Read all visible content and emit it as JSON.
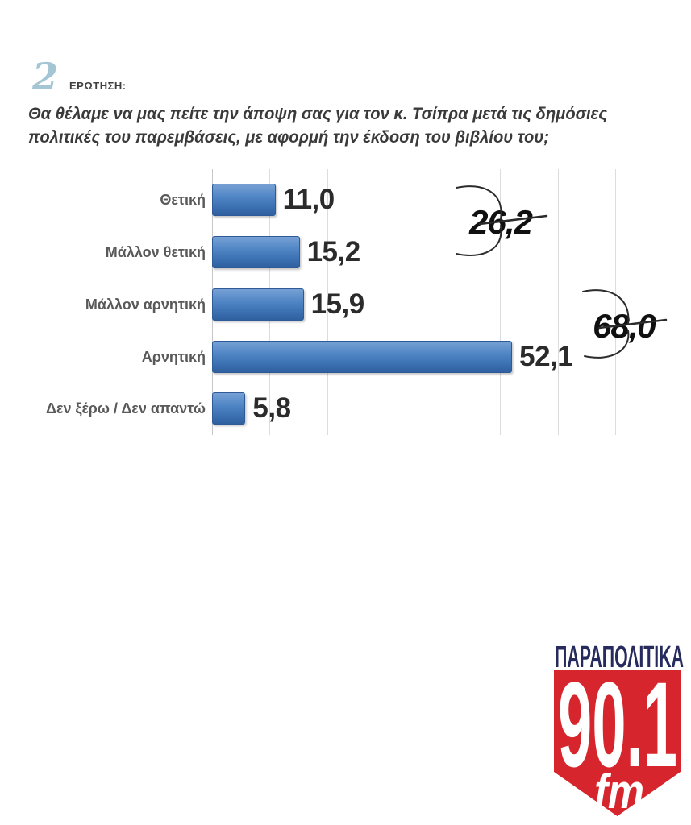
{
  "header": {
    "question_number": "2",
    "question_label": "ΕΡΩΤΗΣΗ:"
  },
  "question": {
    "lines": [
      "Θα θέλαμε να μας πείτε την άποψη σας για τον κ. Τσίπρα μετά τις δημόσιες",
      "πολιτικές του παρεμβάσεις, με αφορμή την έκδοση του βιβλίου του;"
    ]
  },
  "chart_data": {
    "type": "bar",
    "orientation": "horizontal",
    "title": "",
    "categories": [
      "Θετική",
      "Μάλλον θετική",
      "Μάλλον αρνητική",
      "Αρνητική",
      "Δεν ξέρω / Δεν απαντώ"
    ],
    "values": [
      11.0,
      15.2,
      15.9,
      52.1,
      5.8
    ],
    "value_labels": [
      "11,0",
      "15,2",
      "15,9",
      "52,1",
      "5,8"
    ],
    "xlim": [
      0,
      70
    ],
    "gridline_interval": 10,
    "grid": true,
    "legend": false,
    "bar_color": "#4a7fc0",
    "gridline_color": "#dcdcdc",
    "annotations": [
      {
        "label": "26,2",
        "value": 26.2,
        "spans_categories": [
          0,
          1
        ]
      },
      {
        "label": "68,0",
        "value": 68.0,
        "spans_categories": [
          2,
          3
        ]
      }
    ]
  },
  "logo": {
    "station_name": "ΠΑΡΑΠΟΛΙΤΙΚΑ",
    "frequency": "90.1",
    "band": "fm",
    "colors": {
      "red": "#d6252c",
      "navy": "#262a5d",
      "text": "#ffffff"
    }
  },
  "colors": {
    "accent_light_blue": "#a4c5d4",
    "question_text": "#3a3a3a",
    "label_gray": "#595959"
  }
}
